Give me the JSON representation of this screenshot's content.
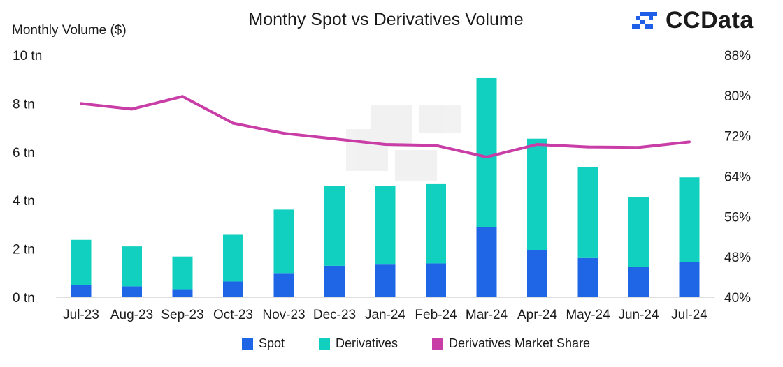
{
  "brand": {
    "name": "CCData",
    "logo_icon": "ccdata-logo-icon",
    "logo_color": "#1f5fe8"
  },
  "chart_data": {
    "type": "bar",
    "stacked": true,
    "title": "Monthy Spot vs Derivatives Volume",
    "ylabel": "Monthly Volume ($)",
    "xlabel": "",
    "categories": [
      "Jul-23",
      "Aug-23",
      "Sep-23",
      "Oct-23",
      "Nov-23",
      "Dec-23",
      "Jan-24",
      "Feb-24",
      "Mar-24",
      "Apr-24",
      "May-24",
      "Jun-24",
      "Jul-24"
    ],
    "ylim": [
      0,
      10
    ],
    "y_ticks": [
      "0 tn",
      "2 tn",
      "4 tn",
      "6 tn",
      "8 tn",
      "10 tn"
    ],
    "y2lim": [
      40,
      88
    ],
    "y2_ticks": [
      "40%",
      "48%",
      "56%",
      "64%",
      "72%",
      "80%",
      "88%"
    ],
    "series": [
      {
        "name": "Spot",
        "type": "bar",
        "color": "#1e66e6",
        "values": [
          0.5,
          0.45,
          0.33,
          0.65,
          1.0,
          1.3,
          1.35,
          1.4,
          2.9,
          1.95,
          1.62,
          1.25,
          1.45
        ]
      },
      {
        "name": "Derivatives",
        "type": "bar",
        "color": "#12d0c0",
        "values": [
          1.87,
          1.65,
          1.35,
          1.93,
          2.62,
          3.3,
          3.25,
          3.3,
          6.15,
          4.6,
          3.76,
          2.88,
          3.5
        ]
      },
      {
        "name": "Derivatives Market Share",
        "type": "line",
        "axis": "right",
        "color": "#c93da6",
        "values": [
          78.4,
          77.3,
          79.8,
          74.5,
          72.5,
          71.4,
          70.3,
          70.1,
          67.8,
          70.3,
          69.8,
          69.7,
          70.8
        ]
      }
    ],
    "grid": false,
    "legend_position": "bottom"
  }
}
